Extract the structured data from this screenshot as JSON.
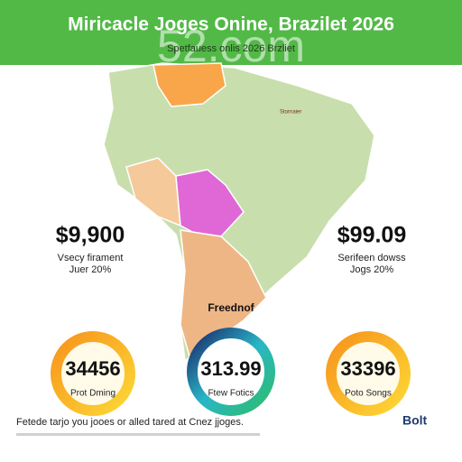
{
  "header": {
    "title": "Miricacle Joges Onine, Brazilet 2026",
    "subtitle": "Spetfauess onlis 2026 Brzliet",
    "watermark": "52.com"
  },
  "stats": [
    {
      "value": "$9,900",
      "line1": "Vsecy firament",
      "line2": "Juer 20%"
    },
    {
      "value": "$99.09",
      "line1": "Serifeen dowss",
      "line2": "Jogs 20%"
    }
  ],
  "map_labels": [
    "Freednof",
    "Stornaier"
  ],
  "donuts": [
    {
      "value": "34456",
      "label": "Prot Dming"
    },
    {
      "value": "313.99",
      "label": "Ftew Fotics"
    },
    {
      "value": "33396",
      "label": "Poto Songs"
    }
  ],
  "footer": {
    "text": "Fetede tarjo you jooes or alled tared at Cnez jjoges.",
    "logo": "Bolt"
  }
}
